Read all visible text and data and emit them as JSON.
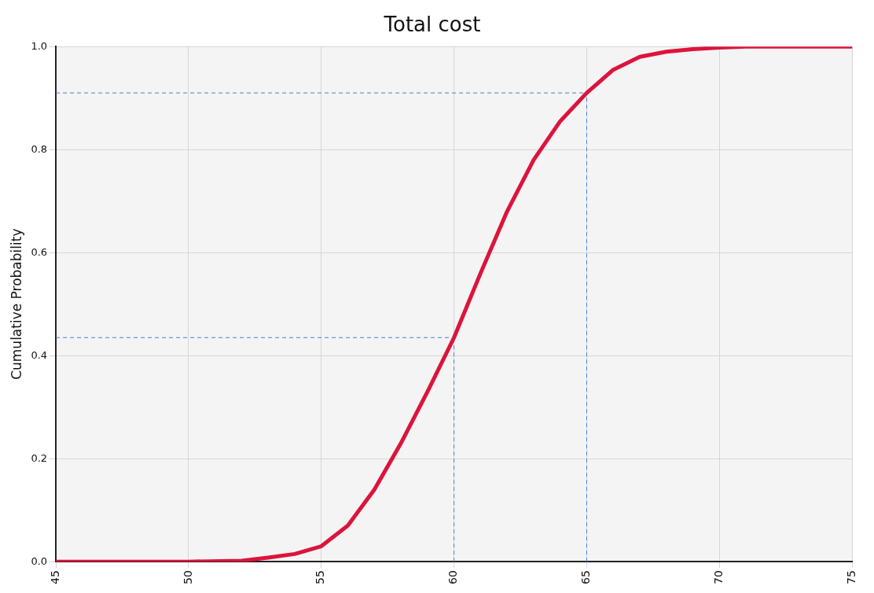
{
  "chart_data": {
    "type": "line",
    "title": "Total cost",
    "ylabel": "Cumulative Probability",
    "series": [
      {
        "color": "#dc143c",
        "x": [
          45,
          50,
          52,
          53,
          54,
          55,
          56,
          57,
          58,
          59,
          60,
          61,
          62,
          63,
          64,
          65,
          66,
          67,
          68,
          69,
          70,
          71,
          75
        ],
        "values": [
          0,
          0,
          0.002,
          0.008,
          0.015,
          0.03,
          0.07,
          0.14,
          0.23,
          0.33,
          0.435,
          0.56,
          0.68,
          0.78,
          0.855,
          0.91,
          0.955,
          0.98,
          0.99,
          0.995,
          0.998,
          1,
          1
        ]
      }
    ],
    "xlim": [
      45,
      75
    ],
    "xticks": [
      45,
      50,
      55,
      60,
      65,
      70,
      75
    ],
    "ylim": [
      0,
      1
    ],
    "yticks": [
      {
        "value": 0,
        "label": "0.0"
      },
      {
        "value": 0.2,
        "label": "0.2"
      },
      {
        "value": 0.4,
        "label": "0.4"
      },
      {
        "value": 0.6,
        "label": "0.6"
      },
      {
        "value": 0.8,
        "label": "0.8"
      },
      {
        "value": 1,
        "label": "1.0"
      }
    ],
    "ref_lines": [
      {
        "axis": "x",
        "value": 60,
        "color": "#4a7fc8",
        "line_style": "dashed"
      },
      {
        "axis": "x",
        "value": 65,
        "color": "#4a7fc8",
        "line_style": "dashed"
      },
      {
        "axis": "y",
        "value": 0.435,
        "color": "#4a7fc8",
        "line_style": "dashed"
      },
      {
        "axis": "y",
        "value": 0.91,
        "color": "#4a7fc8",
        "line_style": "dashed"
      }
    ],
    "grid": true,
    "legend": false,
    "marker": "none",
    "line_style": "solid"
  }
}
